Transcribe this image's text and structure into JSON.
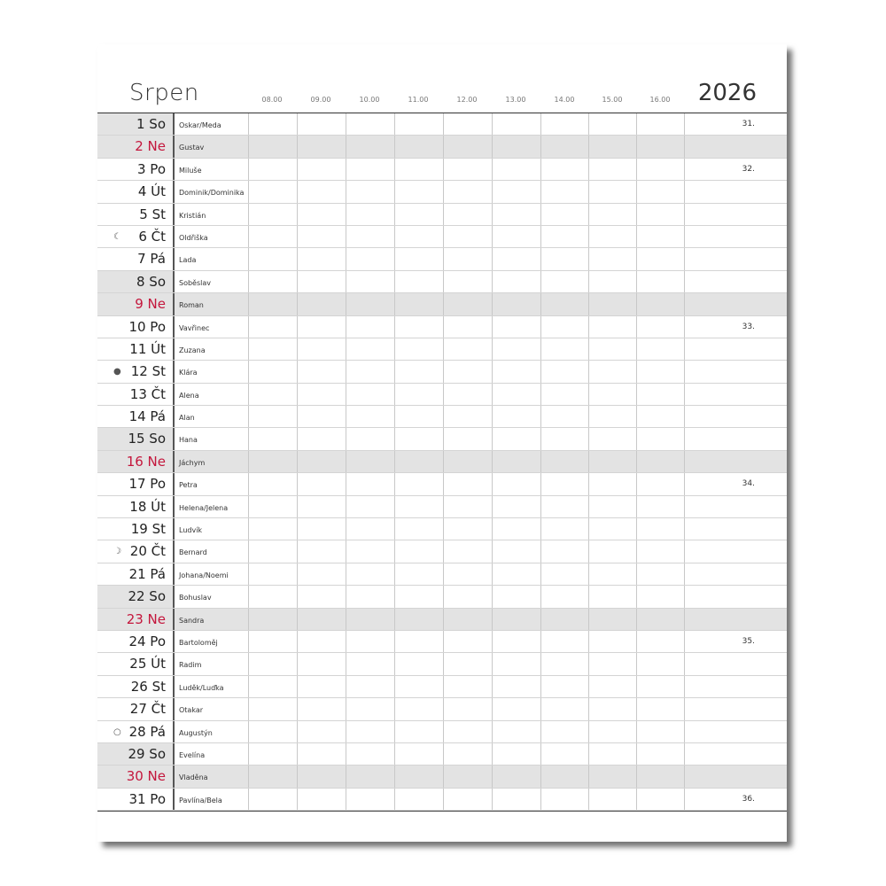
{
  "header": {
    "month": "Srpen",
    "year": "2026",
    "hours": [
      "08.00",
      "09.00",
      "10.00",
      "11.00",
      "12.00",
      "13.00",
      "14.00",
      "15.00",
      "16.00"
    ]
  },
  "colors": {
    "sunday_text": "#c4163c",
    "weekend_fill": "#e3e3e3"
  },
  "days": [
    {
      "day": "1 So",
      "name": "Oskar/Meda",
      "type": "sat",
      "week": "31."
    },
    {
      "day": "2 Ne",
      "name": "Gustav",
      "type": "sun"
    },
    {
      "day": "3 Po",
      "name": "Miluše",
      "week": "32."
    },
    {
      "day": "4 Út",
      "name": "Dominik/Dominika"
    },
    {
      "day": "5 St",
      "name": "Kristián"
    },
    {
      "day": "6 Čt",
      "name": "Oldřiška",
      "moon": "☾",
      "moon_icon": "last-quarter-moon-icon"
    },
    {
      "day": "7 Pá",
      "name": "Lada"
    },
    {
      "day": "8 So",
      "name": "Soběslav",
      "type": "sat"
    },
    {
      "day": "9 Ne",
      "name": "Roman",
      "type": "sun"
    },
    {
      "day": "10 Po",
      "name": "Vavřinec",
      "week": "33."
    },
    {
      "day": "11 Út",
      "name": "Zuzana"
    },
    {
      "day": "12 St",
      "name": "Klára",
      "moon": "●",
      "moon_icon": "new-moon-icon"
    },
    {
      "day": "13 Čt",
      "name": "Alena"
    },
    {
      "day": "14 Pá",
      "name": "Alan"
    },
    {
      "day": "15 So",
      "name": "Hana",
      "type": "sat"
    },
    {
      "day": "16 Ne",
      "name": "Jáchym",
      "type": "sun"
    },
    {
      "day": "17 Po",
      "name": "Petra",
      "week": "34."
    },
    {
      "day": "18 Út",
      "name": "Helena/Jelena"
    },
    {
      "day": "19 St",
      "name": "Ludvík"
    },
    {
      "day": "20 Čt",
      "name": "Bernard",
      "moon": "☽",
      "moon_icon": "first-quarter-moon-icon"
    },
    {
      "day": "21 Pá",
      "name": "Johana/Noemi"
    },
    {
      "day": "22 So",
      "name": "Bohuslav",
      "type": "sat"
    },
    {
      "day": "23 Ne",
      "name": "Sandra",
      "type": "sun"
    },
    {
      "day": "24 Po",
      "name": "Bartoloměj",
      "week": "35."
    },
    {
      "day": "25 Út",
      "name": "Radim"
    },
    {
      "day": "26 St",
      "name": "Luděk/Luďka"
    },
    {
      "day": "27 Čt",
      "name": "Otakar"
    },
    {
      "day": "28 Pá",
      "name": "Augustýn",
      "moon": "○",
      "moon_icon": "full-moon-icon"
    },
    {
      "day": "29 So",
      "name": "Evelína",
      "type": "sat"
    },
    {
      "day": "30 Ne",
      "name": "Vladěna",
      "type": "sun"
    },
    {
      "day": "31 Po",
      "name": "Pavlína/Bela",
      "week": "36."
    }
  ]
}
